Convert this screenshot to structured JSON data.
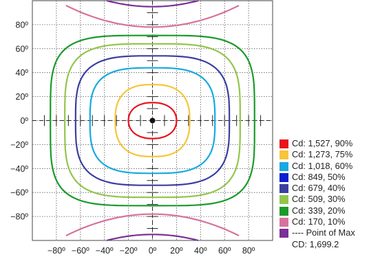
{
  "chart_data": {
    "type": "line",
    "title": "",
    "xlabel": "",
    "ylabel": "",
    "xlim": [
      -100,
      100
    ],
    "ylim": [
      -100,
      100
    ],
    "grid": true,
    "legend_position": "bottom-right",
    "x_ticks": [
      "−80º",
      "−60º",
      "−40º",
      "−20º",
      "0º",
      "20º",
      "40º",
      "60º",
      "80º"
    ],
    "y_ticks": [
      "80º",
      "60º",
      "40º",
      "20º",
      "0º",
      "−20º",
      "−40º",
      "−60º",
      "−80º"
    ],
    "point_of_max": {
      "x": 0,
      "y": 0
    },
    "series": [
      {
        "name": "Cd: 1,527, 90%",
        "color": "#e8141c",
        "half_width": 20,
        "half_height": 15
      },
      {
        "name": "Cd: 1,273, 75%",
        "color": "#f6c53a",
        "half_width": 31,
        "half_height": 30
      },
      {
        "name": "Cd: 1,018, 60%",
        "color": "#17a9e0",
        "half_width": 52,
        "half_height": 44
      },
      {
        "name": "Cd: 849, 50%",
        "color": "#0b1fd1",
        "half_width": 0,
        "half_height": 0
      },
      {
        "name": "Cd: 679, 40%",
        "color": "#3a3fa0",
        "half_width": 64,
        "half_height": 54
      },
      {
        "name": "Cd: 509, 30%",
        "color": "#93c54b",
        "half_width": 73,
        "half_height": 64
      },
      {
        "name": "Cd: 339, 20%",
        "color": "#1a9a2b",
        "half_width": 85,
        "half_height": 71
      },
      {
        "name": "Cd: 170, 10%",
        "color": "#d6739c",
        "half_width": 0,
        "half_height": 0
      },
      {
        "name": "---- Point of Max",
        "color": "#7b2f97",
        "half_width": 0,
        "half_height": 0
      }
    ],
    "max_label": "CD: 1,699.2"
  }
}
